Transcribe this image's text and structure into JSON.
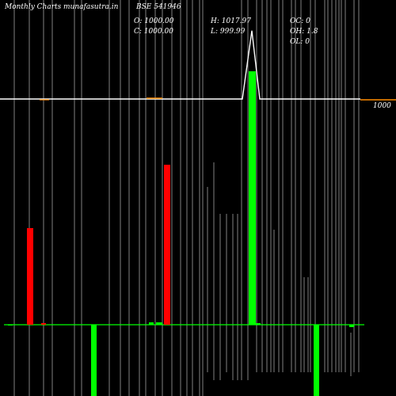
{
  "header": {
    "site_left": "Monthly Charts",
    "site_right": "munafasutra.in",
    "symbol": "BSE 541946"
  },
  "ohlc": {
    "open": "O: 1000.00",
    "close": "C: 1000.00",
    "high": "H: 1017.97",
    "low": "L: 999.99",
    "oc": "OC: 0",
    "oh": "OH: 1.8",
    "ol": "OL: 0"
  },
  "price_label": "1000",
  "colors": {
    "background": "#000000",
    "up": "#00ff00",
    "down": "#ff0000",
    "price_line": "#ffffff",
    "moving_average": "#ff8c00",
    "grid": "#ffffff"
  },
  "chart_data": {
    "type": "bar",
    "description_level": "volume-bars-with-price-line",
    "price": {
      "series": [
        {
          "values": [
            1000,
            1000,
            1000,
            1000,
            1000,
            1000,
            1000,
            1000,
            1000,
            1000,
            1000,
            1000,
            1000,
            1000,
            1000,
            1017.97,
            1000,
            1000,
            1000,
            1000,
            1000,
            1000,
            1000
          ]
        }
      ],
      "reference_level": 1000
    },
    "bars": [
      {
        "dir": "up",
        "value": 0,
        "color": "green"
      },
      {
        "dir": "up",
        "value": 122,
        "color": "red"
      },
      {
        "dir": "up",
        "value": 2,
        "color": "red"
      },
      {
        "dir": "down",
        "value": 90,
        "color": "green"
      },
      {
        "dir": "up",
        "value": 3,
        "color": "green"
      },
      {
        "dir": "up",
        "value": 3,
        "color": "green"
      },
      {
        "dir": "up",
        "value": 202,
        "color": "red"
      },
      {
        "dir": "up",
        "value": 320,
        "color": "green"
      },
      {
        "dir": "up",
        "value": 2,
        "color": "green"
      },
      {
        "dir": "down",
        "value": 90,
        "color": "green"
      },
      {
        "dir": "down",
        "value": 3,
        "color": "green"
      }
    ]
  }
}
